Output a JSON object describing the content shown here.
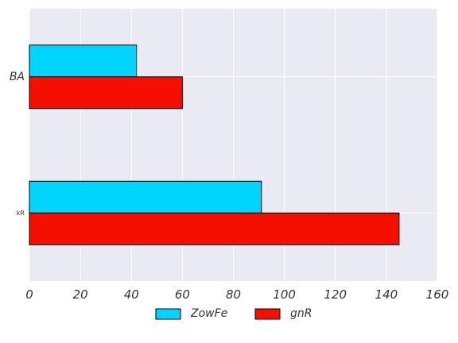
{
  "chart_data": {
    "type": "bar",
    "orientation": "horizontal",
    "categories": [
      "BA",
      "kR"
    ],
    "series": [
      {
        "name": "ZowFe",
        "values": [
          42,
          91
        ],
        "color": "#00d5ff"
      },
      {
        "name": "gnR",
        "values": [
          60,
          145
        ],
        "color": "#f50f00"
      }
    ],
    "xlim": [
      0,
      160
    ],
    "xticks": [
      0,
      20,
      40,
      60,
      80,
      100,
      120,
      140,
      160
    ],
    "title": "",
    "xlabel": "",
    "ylabel": "",
    "grid": true,
    "legend_position": "bottom-center",
    "background": "#eaeaf2"
  }
}
